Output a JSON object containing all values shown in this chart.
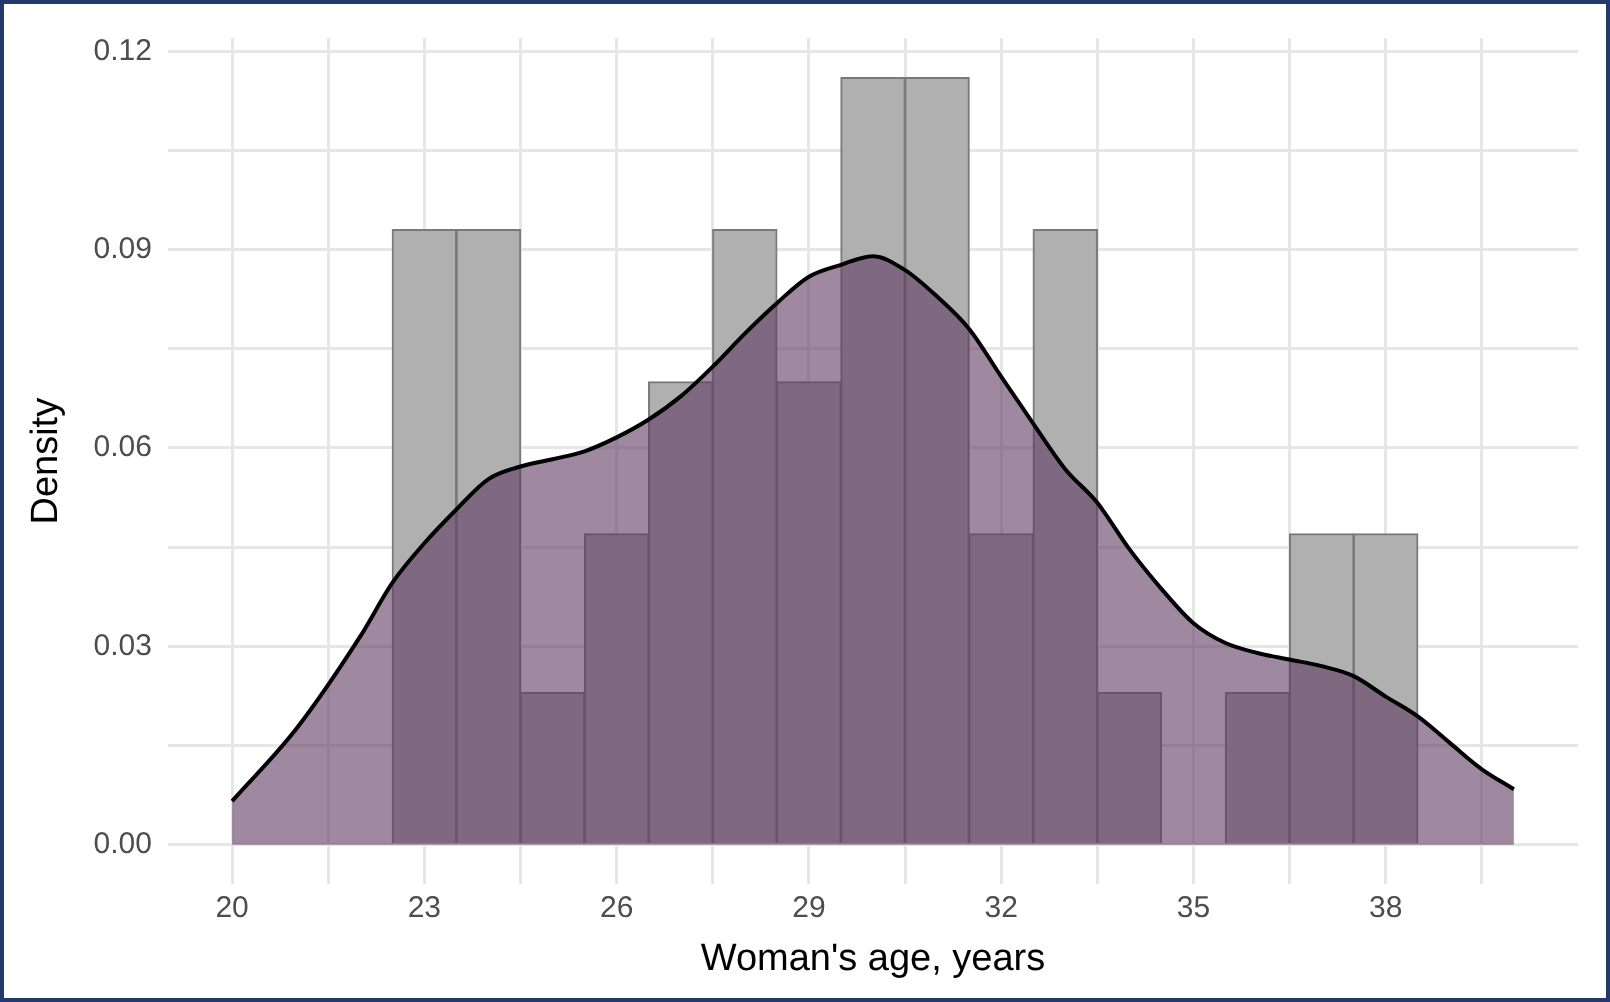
{
  "chart_data": {
    "type": "histogram",
    "xlabel": "Woman's age, years",
    "ylabel": "Density",
    "xlim": [
      19,
      41
    ],
    "ylim": [
      -0.006,
      0.122
    ],
    "xticks": [
      {
        "value": 20,
        "label": "20"
      },
      {
        "value": 21.5,
        "label": null
      },
      {
        "value": 23,
        "label": "23"
      },
      {
        "value": 24.5,
        "label": null
      },
      {
        "value": 26,
        "label": "26"
      },
      {
        "value": 27.5,
        "label": null
      },
      {
        "value": 29,
        "label": "29"
      },
      {
        "value": 30.5,
        "label": null
      },
      {
        "value": 32,
        "label": "32"
      },
      {
        "value": 33.5,
        "label": null
      },
      {
        "value": 35,
        "label": "35"
      },
      {
        "value": 36.5,
        "label": null
      },
      {
        "value": 38,
        "label": "38"
      },
      {
        "value": 39.5,
        "label": null
      }
    ],
    "yticks": [
      {
        "value": 0,
        "label": "0.00"
      },
      {
        "value": 0.015,
        "label": null
      },
      {
        "value": 0.03,
        "label": "0.03"
      },
      {
        "value": 0.045,
        "label": null
      },
      {
        "value": 0.06,
        "label": "0.06"
      },
      {
        "value": 0.075,
        "label": null
      },
      {
        "value": 0.09,
        "label": "0.09"
      },
      {
        "value": 0.105,
        "label": null
      },
      {
        "value": 0.12,
        "label": "0.12"
      }
    ],
    "grid": true,
    "series": [
      {
        "color": "#b0b0b0",
        "bins": [
          19.5,
          20.5,
          21.5,
          22.5,
          23.5,
          24.5,
          25.5,
          26.5,
          27.5,
          28.5,
          29.5,
          30.5,
          31.5,
          32.5,
          33.5,
          34.5,
          35.5,
          36.5,
          37.5,
          38.5,
          39.5
        ],
        "values": [
          0,
          0,
          0,
          0.093,
          0.093,
          0.023,
          0.047,
          0.07,
          0.093,
          0.07,
          0.116,
          0.116,
          0.047,
          0.093,
          0.023,
          0,
          0.023,
          0.047,
          0.047,
          0
        ]
      },
      {
        "type": "area",
        "color": "#5e3a63",
        "x": [
          20,
          21,
          22,
          22.5,
          23,
          23.5,
          24,
          24.5,
          25,
          25.5,
          26,
          26.5,
          27,
          27.5,
          28,
          28.5,
          29,
          29.5,
          30,
          30.5,
          31,
          31.5,
          32,
          32.5,
          33,
          33.5,
          34,
          34.5,
          35,
          35.5,
          36,
          36.5,
          37,
          37.5,
          38,
          38.5,
          39,
          39.5,
          40
        ],
        "values": [
          0.0066,
          0.0175,
          0.0315,
          0.0396,
          0.0456,
          0.0507,
          0.0553,
          0.0572,
          0.0583,
          0.0595,
          0.0616,
          0.0643,
          0.0678,
          0.0723,
          0.0773,
          0.0819,
          0.0859,
          0.0877,
          0.089,
          0.0869,
          0.0829,
          0.078,
          0.0708,
          0.0637,
          0.0568,
          0.0517,
          0.0447,
          0.0387,
          0.0335,
          0.0305,
          0.029,
          0.028,
          0.027,
          0.0255,
          0.0224,
          0.0194,
          0.0154,
          0.0114,
          0.0084
        ]
      }
    ]
  }
}
